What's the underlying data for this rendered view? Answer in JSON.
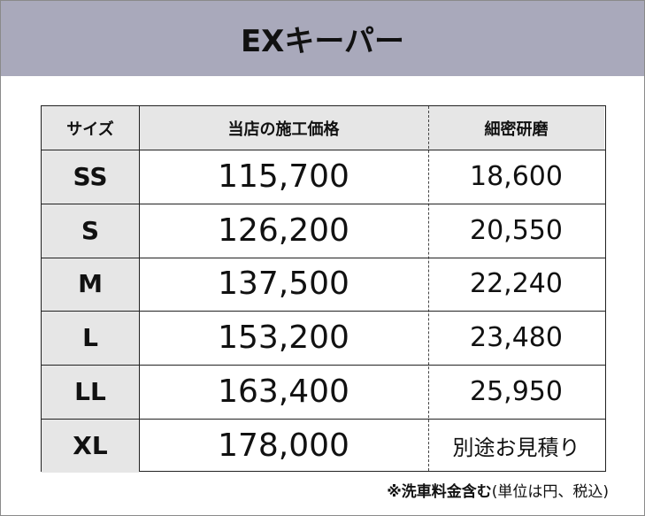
{
  "header": {
    "title": "EXキーパー"
  },
  "table": {
    "columns": [
      "サイズ",
      "当店の施工価格",
      "細密研磨"
    ],
    "rows": [
      [
        "SS",
        "115,700",
        "18,600"
      ],
      [
        "S",
        "126,200",
        "20,550"
      ],
      [
        "M",
        "137,500",
        "22,240"
      ],
      [
        "L",
        "153,200",
        "23,480"
      ],
      [
        "LL",
        "163,400",
        "25,950"
      ],
      [
        "XL",
        "178,000",
        "別途お見積り"
      ]
    ]
  },
  "footnote": {
    "bold": "※洗車料金含む",
    "normal": "(単位は円、税込)"
  }
}
